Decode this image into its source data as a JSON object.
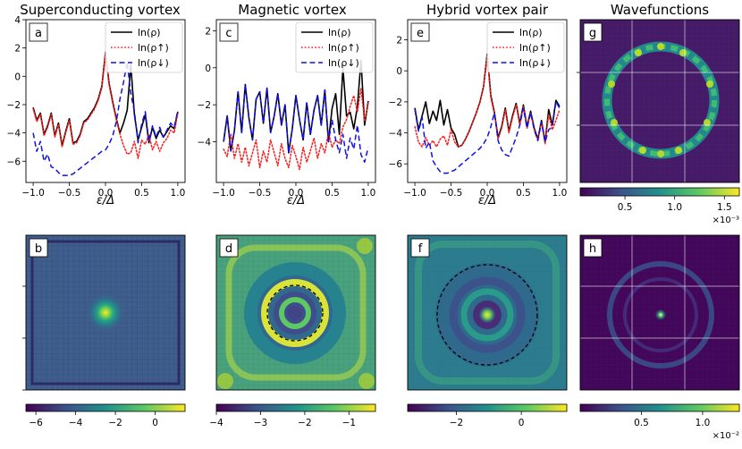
{
  "figure": {
    "background": "#ffffff"
  },
  "colors": {
    "total": "#000000",
    "spin_up": "#ff1a1a",
    "spin_down": "#1010e8",
    "colormap": [
      "#440154",
      "#3b528b",
      "#21918c",
      "#5ec962",
      "#fde725"
    ]
  },
  "chart_data": [
    {
      "id": "a",
      "type": "line",
      "title": "Superconducting vortex",
      "panel_label": "a",
      "xlabel": "ε/Δ",
      "ylabel": "",
      "xlim": [
        -1.1,
        1.1
      ],
      "ylim": [
        -7.5,
        4
      ],
      "xticks": [
        -1.0,
        -0.5,
        0.0,
        0.5,
        1.0
      ],
      "xtick_labels": [
        "−1.0",
        "−0.5",
        "0.0",
        "0.5",
        "1.0"
      ],
      "yticks": [
        -6,
        -4,
        -2,
        0,
        2,
        4
      ],
      "ytick_labels": [
        "−6",
        "−4",
        "−2",
        "0",
        "2",
        "4"
      ],
      "legend_position": "top-right",
      "series": [
        {
          "name": "ln(ρ)",
          "style": "solid",
          "x": [
            -1.0,
            -0.95,
            -0.9,
            -0.85,
            -0.8,
            -0.75,
            -0.7,
            -0.65,
            -0.6,
            -0.55,
            -0.5,
            -0.45,
            -0.4,
            -0.35,
            -0.3,
            -0.25,
            -0.2,
            -0.15,
            -0.1,
            -0.05,
            0.0,
            0.05,
            0.1,
            0.15,
            0.2,
            0.25,
            0.3,
            0.35,
            0.4,
            0.45,
            0.5,
            0.55,
            0.6,
            0.65,
            0.7,
            0.75,
            0.8,
            0.85,
            0.9,
            0.95,
            1.0
          ],
          "y": [
            -2.2,
            -3.1,
            -2.6,
            -4.1,
            -3.5,
            -2.6,
            -4.2,
            -3.3,
            -4.9,
            -3.9,
            -3.0,
            -4.7,
            -4.6,
            -4.1,
            -3.2,
            -3.0,
            -2.6,
            -2.2,
            -1.6,
            -0.7,
            1.7,
            -0.5,
            -1.8,
            -3.0,
            -4.0,
            -3.3,
            -2.4,
            0.8,
            -2.7,
            -4.5,
            -3.6,
            -2.7,
            -4.7,
            -3.6,
            -4.4,
            -3.8,
            -4.3,
            -3.9,
            -3.5,
            -3.7,
            -2.5
          ]
        },
        {
          "name": "ln(ρ↑)",
          "style": "dotted",
          "x": [
            -1.0,
            -0.95,
            -0.9,
            -0.85,
            -0.8,
            -0.75,
            -0.7,
            -0.65,
            -0.6,
            -0.55,
            -0.5,
            -0.45,
            -0.4,
            -0.35,
            -0.3,
            -0.25,
            -0.2,
            -0.15,
            -0.1,
            -0.05,
            0.0,
            0.05,
            0.1,
            0.15,
            0.2,
            0.25,
            0.3,
            0.35,
            0.4,
            0.45,
            0.5,
            0.55,
            0.6,
            0.65,
            0.7,
            0.75,
            0.8,
            0.85,
            0.9,
            0.95,
            1.0
          ],
          "y": [
            -2.3,
            -3.2,
            -2.7,
            -4.2,
            -3.6,
            -2.7,
            -4.3,
            -3.4,
            -5.0,
            -4.0,
            -3.1,
            -4.8,
            -4.7,
            -4.2,
            -3.3,
            -3.1,
            -2.7,
            -2.3,
            -1.7,
            -0.8,
            1.6,
            -0.6,
            -1.9,
            -3.1,
            -4.1,
            -4.9,
            -5.5,
            -5.4,
            -4.6,
            -5.8,
            -4.5,
            -4.8,
            -4.1,
            -5.2,
            -4.6,
            -5.3,
            -4.7,
            -4.4,
            -3.8,
            -4.0,
            -2.6
          ]
        },
        {
          "name": "ln(ρ↓)",
          "style": "dashed",
          "x": [
            -1.0,
            -0.95,
            -0.9,
            -0.85,
            -0.8,
            -0.75,
            -0.7,
            -0.65,
            -0.6,
            -0.55,
            -0.5,
            -0.45,
            -0.4,
            -0.35,
            -0.3,
            -0.25,
            -0.2,
            -0.15,
            -0.1,
            -0.05,
            0.0,
            0.05,
            0.1,
            0.15,
            0.2,
            0.25,
            0.3,
            0.35,
            0.4,
            0.45,
            0.5,
            0.55,
            0.6,
            0.65,
            0.7,
            0.75,
            0.8,
            0.85,
            0.9,
            0.95,
            1.0
          ],
          "y": [
            -4.0,
            -5.3,
            -4.6,
            -6.0,
            -5.5,
            -6.4,
            -6.5,
            -6.8,
            -7.0,
            -7.0,
            -7.0,
            -6.9,
            -6.7,
            -6.5,
            -6.3,
            -6.1,
            -5.9,
            -5.7,
            -5.5,
            -5.3,
            -5.2,
            -4.8,
            -4.2,
            -3.2,
            -1.6,
            -0.4,
            1.0,
            -1.2,
            -2.5,
            -4.7,
            -3.4,
            -2.5,
            -4.6,
            -3.5,
            -4.3,
            -3.6,
            -4.3,
            -3.8,
            -3.3,
            -3.6,
            -2.4
          ]
        }
      ]
    },
    {
      "id": "c",
      "type": "line",
      "title": "Magnetic vortex",
      "panel_label": "c",
      "xlabel": "ε/Δ",
      "ylabel": "",
      "xlim": [
        -1.1,
        1.1
      ],
      "ylim": [
        -6.2,
        2.6
      ],
      "xticks": [
        -1.0,
        -0.5,
        0.0,
        0.5,
        1.0
      ],
      "xtick_labels": [
        "−1.0",
        "−0.5",
        "0.0",
        "0.5",
        "1.0"
      ],
      "yticks": [
        -4,
        -2,
        0,
        2
      ],
      "ytick_labels": [
        "−4",
        "−2",
        "0",
        "2"
      ],
      "legend_position": "top-right",
      "series": [
        {
          "name": "ln(ρ)",
          "style": "solid",
          "x": [
            -1.0,
            -0.95,
            -0.9,
            -0.85,
            -0.8,
            -0.75,
            -0.7,
            -0.65,
            -0.6,
            -0.55,
            -0.5,
            -0.45,
            -0.4,
            -0.35,
            -0.3,
            -0.25,
            -0.2,
            -0.15,
            -0.1,
            -0.05,
            0.0,
            0.05,
            0.1,
            0.15,
            0.2,
            0.25,
            0.3,
            0.35,
            0.4,
            0.45,
            0.5,
            0.55,
            0.6,
            0.65,
            0.7,
            0.75,
            0.8,
            0.85,
            0.9,
            0.95,
            1.0
          ],
          "y": [
            -4.0,
            -2.6,
            -4.5,
            -3.4,
            -1.3,
            -3.5,
            -0.9,
            -2.7,
            -3.9,
            -1.7,
            -1.3,
            -3.0,
            -1.1,
            -3.5,
            -2.6,
            -1.4,
            -3.1,
            -2.0,
            -4.6,
            -3.3,
            -1.5,
            -2.8,
            -3.9,
            -1.9,
            -3.6,
            -2.3,
            -1.5,
            -3.1,
            -1.2,
            -4.0,
            -2.2,
            -1.4,
            -3.6,
            0.0,
            -2.6,
            -2.4,
            -3.3,
            -2.1,
            0.4,
            -3.1,
            -1.8
          ]
        },
        {
          "name": "ln(ρ↑)",
          "style": "dotted",
          "x": [
            -1.0,
            -0.95,
            -0.9,
            -0.85,
            -0.8,
            -0.75,
            -0.7,
            -0.65,
            -0.6,
            -0.55,
            -0.5,
            -0.45,
            -0.4,
            -0.35,
            -0.3,
            -0.25,
            -0.2,
            -0.15,
            -0.1,
            -0.05,
            0.0,
            0.05,
            0.1,
            0.15,
            0.2,
            0.25,
            0.3,
            0.35,
            0.4,
            0.45,
            0.5,
            0.55,
            0.6,
            0.65,
            0.7,
            0.75,
            0.8,
            0.85,
            0.9,
            0.95,
            1.0
          ],
          "y": [
            -4.4,
            -4.8,
            -3.6,
            -4.9,
            -4.1,
            -5.1,
            -4.3,
            -5.3,
            -4.6,
            -3.9,
            -5.4,
            -4.5,
            -5.1,
            -3.9,
            -4.6,
            -5.3,
            -4.1,
            -4.9,
            -5.4,
            -4.2,
            -4.8,
            -5.5,
            -4.3,
            -5.1,
            -4.5,
            -3.8,
            -4.9,
            -4.1,
            -4.6,
            -3.5,
            -4.3,
            -3.9,
            -4.1,
            -3.2,
            -2.8,
            -2.1,
            -1.5,
            -2.4,
            -1.1,
            -2.9,
            -1.9
          ]
        },
        {
          "name": "ln(ρ↓)",
          "style": "dashed",
          "x": [
            -1.0,
            -0.95,
            -0.9,
            -0.85,
            -0.8,
            -0.75,
            -0.7,
            -0.65,
            -0.6,
            -0.55,
            -0.5,
            -0.45,
            -0.4,
            -0.35,
            -0.3,
            -0.25,
            -0.2,
            -0.15,
            -0.1,
            -0.05,
            0.0,
            0.05,
            0.1,
            0.15,
            0.2,
            0.25,
            0.3,
            0.35,
            0.4,
            0.45,
            0.5,
            0.55,
            0.6,
            0.65,
            0.7,
            0.75,
            0.8,
            0.85,
            0.9,
            0.95,
            1.0
          ],
          "y": [
            -4.0,
            -2.6,
            -4.5,
            -3.4,
            -1.3,
            -3.5,
            -0.9,
            -2.7,
            -3.9,
            -1.7,
            -1.3,
            -3.0,
            -1.1,
            -3.5,
            -2.6,
            -1.4,
            -3.1,
            -2.0,
            -4.6,
            -3.3,
            -1.5,
            -2.8,
            -3.9,
            -1.9,
            -3.6,
            -2.3,
            -1.5,
            -3.1,
            -1.2,
            -4.0,
            -2.8,
            -3.9,
            -4.6,
            -3.6,
            -4.9,
            -3.8,
            -4.4,
            -3.1,
            -4.7,
            -5.1,
            -4.3
          ]
        }
      ]
    },
    {
      "id": "e",
      "type": "line",
      "title": "Hybrid vortex pair",
      "panel_label": "e",
      "xlabel": "ε/Δ",
      "ylabel": "",
      "xlim": [
        -1.1,
        1.1
      ],
      "ylim": [
        -7.2,
        3.3
      ],
      "xticks": [
        -1.0,
        -0.5,
        0.0,
        0.5,
        1.0
      ],
      "xtick_labels": [
        "−1.0",
        "−0.5",
        "0.0",
        "0.5",
        "1.0"
      ],
      "yticks": [
        -6,
        -4,
        -2,
        0,
        2
      ],
      "ytick_labels": [
        "−6",
        "−4",
        "−2",
        "0",
        "2"
      ],
      "legend_position": "top-right",
      "series": [
        {
          "name": "ln(ρ)",
          "style": "solid",
          "x": [
            -1.0,
            -0.95,
            -0.9,
            -0.85,
            -0.8,
            -0.75,
            -0.7,
            -0.65,
            -0.6,
            -0.55,
            -0.5,
            -0.45,
            -0.4,
            -0.35,
            -0.3,
            -0.25,
            -0.2,
            -0.15,
            -0.1,
            -0.05,
            0.0,
            0.05,
            0.1,
            0.15,
            0.2,
            0.25,
            0.3,
            0.35,
            0.4,
            0.45,
            0.5,
            0.55,
            0.6,
            0.65,
            0.7,
            0.75,
            0.8,
            0.85,
            0.9,
            0.95,
            1.0
          ],
          "y": [
            -2.4,
            -3.8,
            -2.9,
            -2.0,
            -3.4,
            -2.6,
            -3.2,
            -1.9,
            -3.5,
            -2.5,
            -3.7,
            -4.1,
            -4.9,
            -4.8,
            -4.4,
            -3.9,
            -3.3,
            -2.7,
            -2.0,
            -1.0,
            1.1,
            -1.6,
            -2.7,
            -4.3,
            -3.6,
            -2.4,
            -3.9,
            -2.9,
            -2.1,
            -3.4,
            -2.2,
            -3.6,
            -2.6,
            -3.7,
            -4.4,
            -3.2,
            -4.6,
            -2.5,
            -3.5,
            -1.9,
            -2.3
          ]
        },
        {
          "name": "ln(ρ↑)",
          "style": "dotted",
          "x": [
            -1.0,
            -0.95,
            -0.9,
            -0.85,
            -0.8,
            -0.75,
            -0.7,
            -0.65,
            -0.6,
            -0.55,
            -0.5,
            -0.45,
            -0.4,
            -0.35,
            -0.3,
            -0.25,
            -0.2,
            -0.15,
            -0.1,
            -0.05,
            0.0,
            0.05,
            0.1,
            0.15,
            0.2,
            0.25,
            0.3,
            0.35,
            0.4,
            0.45,
            0.5,
            0.55,
            0.6,
            0.65,
            0.7,
            0.75,
            0.8,
            0.85,
            0.9,
            0.95,
            1.0
          ],
          "y": [
            -3.6,
            -4.6,
            -4.9,
            -4.3,
            -4.8,
            -4.5,
            -4.9,
            -4.4,
            -4.2,
            -4.8,
            -3.8,
            -4.6,
            -4.9,
            -4.8,
            -4.4,
            -3.9,
            -3.3,
            -2.7,
            -2.0,
            -1.0,
            1.0,
            -1.7,
            -2.8,
            -4.4,
            -3.7,
            -2.5,
            -4.0,
            -3.0,
            -2.2,
            -3.5,
            -2.3,
            -3.7,
            -2.7,
            -3.8,
            -4.5,
            -3.3,
            -4.7,
            -2.8,
            -3.8,
            -3.2,
            -2.5
          ]
        },
        {
          "name": "ln(ρ↓)",
          "style": "dashed",
          "x": [
            -1.0,
            -0.95,
            -0.9,
            -0.85,
            -0.8,
            -0.75,
            -0.7,
            -0.65,
            -0.6,
            -0.55,
            -0.5,
            -0.45,
            -0.4,
            -0.35,
            -0.3,
            -0.25,
            -0.2,
            -0.15,
            -0.1,
            -0.05,
            0.0,
            0.05,
            0.1,
            0.15,
            0.2,
            0.25,
            0.3,
            0.35,
            0.4,
            0.45,
            0.5,
            0.55,
            0.6,
            0.65,
            0.7,
            0.75,
            0.8,
            0.85,
            0.9,
            0.95,
            1.0
          ],
          "y": [
            -2.5,
            -3.9,
            -3.0,
            -5.0,
            -4.6,
            -5.8,
            -6.2,
            -6.5,
            -6.6,
            -6.6,
            -6.5,
            -6.4,
            -6.2,
            -6.0,
            -5.8,
            -5.6,
            -5.4,
            -5.2,
            -5.0,
            -4.7,
            -4.3,
            -3.6,
            -2.7,
            -4.5,
            -5.1,
            -5.4,
            -5.5,
            -4.9,
            -4.3,
            -3.5,
            -2.4,
            -3.7,
            -2.7,
            -3.8,
            -4.5,
            -3.3,
            -4.6,
            -3.8,
            -3.6,
            -2.0,
            -2.4
          ]
        }
      ]
    },
    {
      "id": "b",
      "type": "heatmap",
      "panel_label": "b",
      "pattern": "central-peak",
      "colorbar": {
        "min": -6.5,
        "max": 1.5,
        "ticks": [
          -6,
          -4,
          -2,
          0
        ],
        "tick_labels": [
          "−6",
          "−4",
          "−2",
          "0"
        ],
        "exponent_label": ""
      }
    },
    {
      "id": "d",
      "type": "heatmap",
      "panel_label": "d",
      "pattern": "ring-with-circle",
      "colorbar": {
        "min": -4.0,
        "max": -0.4,
        "ticks": [
          -4,
          -3,
          -2,
          -1
        ],
        "tick_labels": [
          "−4",
          "−3",
          "−2",
          "−1"
        ],
        "exponent_label": ""
      }
    },
    {
      "id": "f",
      "type": "heatmap",
      "panel_label": "f",
      "pattern": "peak-with-large-circle",
      "colorbar": {
        "min": -3.5,
        "max": 1.4,
        "ticks": [
          -2,
          0
        ],
        "tick_labels": [
          "−2",
          "0"
        ],
        "exponent_label": ""
      }
    },
    {
      "id": "g",
      "type": "heatmap",
      "title": "Wavefunctions",
      "panel_label": "g",
      "pattern": "bright-ring",
      "colorbar": {
        "min": 0.05,
        "max": 1.65,
        "ticks": [
          0.5,
          1.0,
          1.5
        ],
        "tick_labels": [
          "0.5",
          "1.0",
          "1.5"
        ],
        "exponent_label": "×10⁻³"
      }
    },
    {
      "id": "h",
      "type": "heatmap",
      "panel_label": "h",
      "pattern": "faint-ring-central-dot",
      "colorbar": {
        "min": 0.0,
        "max": 1.3,
        "ticks": [
          0.5,
          1.0
        ],
        "tick_labels": [
          "0.5",
          "1.0"
        ],
        "exponent_label": "×10⁻²"
      }
    }
  ]
}
